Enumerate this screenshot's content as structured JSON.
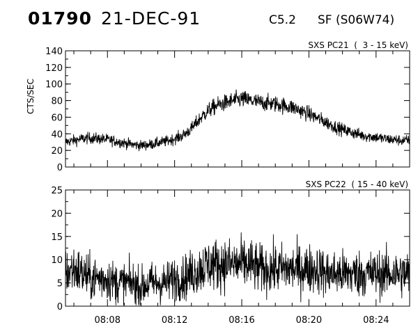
{
  "header": {
    "event_id": "01790",
    "date": "21-DEC-91",
    "flare_class": "C5.2",
    "flare_location": "SF (S06W74)"
  },
  "chart_data": [
    {
      "type": "line",
      "title": "SXS PC21  (  3 - 15 keV)",
      "ylabel": "CTS/SEC",
      "xlabel": "",
      "xlim": [
        "08:05:30",
        "08:26:00"
      ],
      "x_ticks": [
        "08:08",
        "08:12",
        "08:16",
        "08:20",
        "08:24"
      ],
      "ylim": [
        0,
        140
      ],
      "y_ticks": [
        0,
        20,
        40,
        60,
        80,
        100,
        120,
        140
      ],
      "grid": false,
      "series": [
        {
          "x": [
            "08:05:30",
            "08:06:00",
            "08:06:30",
            "08:07:00",
            "08:07:30",
            "08:08:00",
            "08:08:30",
            "08:09:00",
            "08:09:30",
            "08:10:00",
            "08:10:30",
            "08:11:00",
            "08:11:30",
            "08:12:00",
            "08:12:30",
            "08:13:00",
            "08:13:30",
            "08:14:00",
            "08:14:30",
            "08:15:00",
            "08:15:30",
            "08:16:00",
            "08:16:30",
            "08:17:00",
            "08:17:30",
            "08:18:00",
            "08:18:30",
            "08:19:00",
            "08:19:30",
            "08:20:00",
            "08:20:30",
            "08:21:00",
            "08:21:30",
            "08:22:00",
            "08:22:30",
            "08:23:00",
            "08:23:30",
            "08:24:00",
            "08:24:30",
            "08:25:00",
            "08:25:30",
            "08:26:00"
          ],
          "y": [
            30,
            32,
            34,
            35,
            34,
            33,
            31,
            29,
            27,
            26,
            27,
            29,
            31,
            34,
            38,
            46,
            58,
            68,
            74,
            77,
            80,
            82,
            80,
            78,
            77,
            76,
            74,
            72,
            68,
            64,
            59,
            54,
            49,
            45,
            42,
            39,
            37,
            36,
            34,
            33,
            32,
            32
          ]
        }
      ]
    },
    {
      "type": "line",
      "title": "SXS PC22  ( 15 - 40 keV)",
      "ylabel": "",
      "xlabel": "",
      "xlim": [
        "08:05:30",
        "08:26:00"
      ],
      "x_ticks": [
        "08:08",
        "08:12",
        "08:16",
        "08:20",
        "08:24"
      ],
      "ylim": [
        0,
        25
      ],
      "y_ticks": [
        0,
        5,
        10,
        15,
        20,
        25
      ],
      "grid": false,
      "series": [
        {
          "x": [
            "08:05:30",
            "08:06:00",
            "08:06:30",
            "08:07:00",
            "08:07:30",
            "08:08:00",
            "08:08:30",
            "08:09:00",
            "08:09:30",
            "08:10:00",
            "08:10:30",
            "08:11:00",
            "08:11:30",
            "08:12:00",
            "08:12:30",
            "08:13:00",
            "08:13:30",
            "08:14:00",
            "08:14:30",
            "08:15:00",
            "08:15:30",
            "08:16:00",
            "08:16:30",
            "08:17:00",
            "08:17:30",
            "08:18:00",
            "08:18:30",
            "08:19:00",
            "08:19:30",
            "08:20:00",
            "08:20:30",
            "08:21:00",
            "08:21:30",
            "08:22:00",
            "08:22:30",
            "08:23:00",
            "08:23:30",
            "08:24:00",
            "08:24:30",
            "08:25:00",
            "08:25:30",
            "08:26:00"
          ],
          "y": [
            7,
            8,
            7,
            6,
            6,
            6,
            5,
            5,
            5,
            4,
            5,
            5,
            5,
            6,
            6,
            7,
            8,
            9,
            9,
            9,
            9,
            9,
            9,
            8,
            8,
            8,
            8,
            8,
            8,
            8,
            8,
            7,
            7,
            7,
            7,
            7,
            7,
            7,
            7,
            7,
            7,
            7
          ]
        }
      ]
    }
  ]
}
